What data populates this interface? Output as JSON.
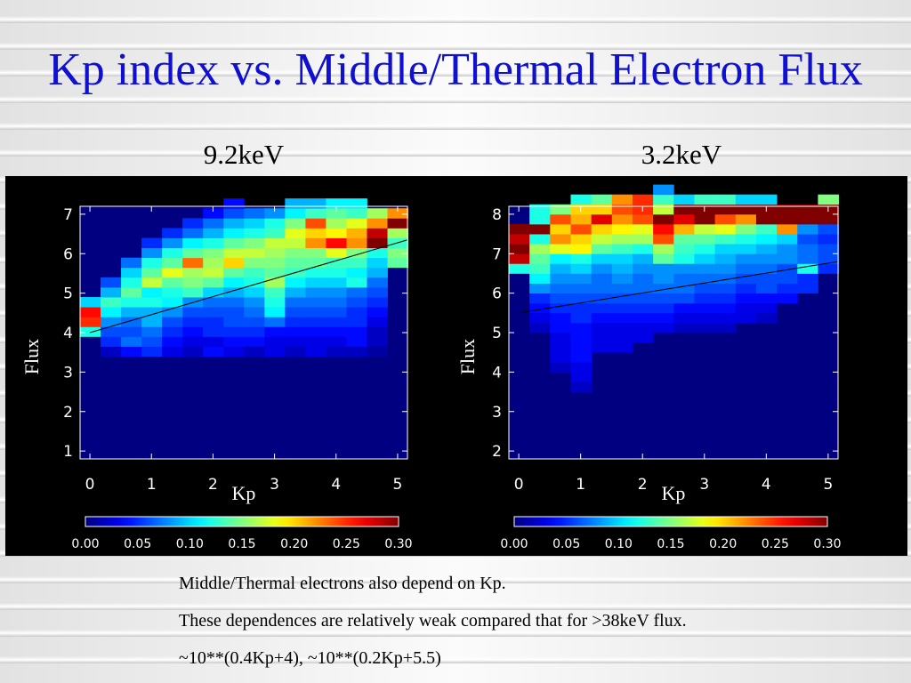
{
  "title": "Kp index vs. Middle/Thermal Electron Flux",
  "panels": {
    "left_caption": "9.2keV",
    "right_caption": "3.2keV"
  },
  "captions": [
    "Middle/Thermal electrons also depend on Kp.",
    "These dependences are relatively weak compared that for >38keV flux.",
    "~10**(0.4Kp+4), ~10**(0.2Kp+5.5)"
  ],
  "colors": {
    "title": "#1010d0",
    "plot_background": "#000080",
    "figure_background": "#000000",
    "fit_line": "#000000"
  },
  "chart_data": [
    {
      "type": "heatmap",
      "title": "9.2keV",
      "xlabel": "Kp",
      "ylabel": "Flux",
      "xlim": [
        -0.16,
        5.16
      ],
      "ylim": [
        0.8,
        7.2
      ],
      "x_ticks": [
        "0",
        "1",
        "2",
        "3",
        "4",
        "5"
      ],
      "y_ticks": [
        "1",
        "2",
        "3",
        "4",
        "5",
        "6",
        "7"
      ],
      "colorbar": {
        "range": [
          0.0,
          0.3
        ],
        "ticks": [
          "0.00",
          "0.05",
          "0.10",
          "0.15",
          "0.20",
          "0.25",
          "0.30"
        ],
        "colormap": "jet"
      },
      "bin_x_start": -0.16,
      "bin_x_width": 0.333,
      "bin_y_start": 3.4,
      "bin_y_width": 0.25,
      "cells": [
        [
          0.0,
          0.02,
          0.04,
          0.05,
          0.03,
          0.02,
          0.04,
          0.03,
          0.02,
          0.03,
          0.02,
          0.03,
          0.02,
          0.02,
          0.01,
          0.0
        ],
        [
          0.0,
          0.05,
          0.07,
          0.06,
          0.04,
          0.03,
          0.03,
          0.04,
          0.04,
          0.03,
          0.03,
          0.03,
          0.03,
          0.04,
          0.02,
          0.0
        ],
        [
          0.12,
          0.06,
          0.06,
          0.07,
          0.05,
          0.04,
          0.05,
          0.05,
          0.05,
          0.04,
          0.04,
          0.04,
          0.04,
          0.04,
          0.02,
          0.0
        ],
        [
          0.25,
          0.08,
          0.07,
          0.09,
          0.06,
          0.05,
          0.05,
          0.06,
          0.06,
          0.07,
          0.05,
          0.05,
          0.05,
          0.05,
          0.03,
          0.0
        ],
        [
          0.26,
          0.11,
          0.09,
          0.09,
          0.08,
          0.06,
          0.06,
          0.06,
          0.07,
          0.11,
          0.06,
          0.06,
          0.06,
          0.05,
          0.04,
          0.0
        ],
        [
          0.1,
          0.13,
          0.12,
          0.12,
          0.11,
          0.08,
          0.07,
          0.07,
          0.08,
          0.12,
          0.07,
          0.07,
          0.07,
          0.06,
          0.05,
          0.0
        ],
        [
          0.0,
          0.09,
          0.14,
          0.11,
          0.12,
          0.13,
          0.1,
          0.09,
          0.1,
          0.13,
          0.09,
          0.08,
          0.08,
          0.07,
          0.06,
          0.0
        ],
        [
          0.0,
          0.06,
          0.12,
          0.17,
          0.14,
          0.15,
          0.14,
          0.11,
          0.12,
          0.16,
          0.11,
          0.1,
          0.1,
          0.12,
          0.07,
          0.0
        ],
        [
          0.0,
          0.0,
          0.1,
          0.14,
          0.18,
          0.16,
          0.17,
          0.14,
          0.13,
          0.14,
          0.13,
          0.12,
          0.12,
          0.11,
          0.09,
          0.0
        ],
        [
          0.0,
          0.0,
          0.07,
          0.12,
          0.14,
          0.23,
          0.16,
          0.2,
          0.15,
          0.15,
          0.14,
          0.14,
          0.13,
          0.13,
          0.1,
          0.14
        ],
        [
          0.0,
          0.0,
          0.0,
          0.08,
          0.12,
          0.14,
          0.15,
          0.17,
          0.17,
          0.16,
          0.15,
          0.15,
          0.18,
          0.15,
          0.12,
          0.15
        ],
        [
          0.0,
          0.0,
          0.0,
          0.05,
          0.08,
          0.11,
          0.12,
          0.14,
          0.15,
          0.17,
          0.17,
          0.22,
          0.26,
          0.22,
          0.3,
          0.13
        ],
        [
          0.0,
          0.0,
          0.0,
          0.0,
          0.05,
          0.07,
          0.09,
          0.11,
          0.12,
          0.13,
          0.18,
          0.2,
          0.19,
          0.21,
          0.28,
          0.16
        ],
        [
          0.0,
          0.0,
          0.0,
          0.0,
          0.0,
          0.05,
          0.07,
          0.09,
          0.1,
          0.12,
          0.15,
          0.24,
          0.16,
          0.18,
          0.22,
          0.3
        ],
        [
          0.0,
          0.0,
          0.0,
          0.0,
          0.0,
          0.0,
          0.04,
          0.06,
          0.07,
          0.08,
          0.11,
          0.13,
          0.14,
          0.13,
          0.16,
          0.22
        ],
        [
          0.0,
          0.0,
          0.0,
          0.0,
          0.0,
          0.0,
          0.0,
          0.04,
          0.0,
          0.0,
          0.09,
          0.09,
          0.11,
          0.11,
          0.0,
          0.0
        ]
      ],
      "fit_line": {
        "x": [
          0.0,
          5.16
        ],
        "y": [
          4.0,
          6.35
        ]
      }
    },
    {
      "type": "heatmap",
      "title": "3.2keV",
      "xlabel": "Kp",
      "ylabel": "Flux",
      "xlim": [
        -0.16,
        5.16
      ],
      "ylim": [
        1.8,
        8.2
      ],
      "x_ticks": [
        "0",
        "1",
        "2",
        "3",
        "4",
        "5"
      ],
      "y_ticks": [
        "2",
        "3",
        "4",
        "5",
        "6",
        "7",
        "8"
      ],
      "colorbar": {
        "range": [
          0.0,
          0.3
        ],
        "ticks": [
          "0.00",
          "0.05",
          "0.10",
          "0.15",
          "0.20",
          "0.25",
          "0.30"
        ],
        "colormap": "jet"
      },
      "bin_x_start": -0.16,
      "bin_x_width": 0.333,
      "bin_y_start": 3.5,
      "bin_y_width": 0.25,
      "cells": [
        [
          0.0,
          0.0,
          0.0,
          0.02,
          0.0,
          0.0,
          0.0,
          0.0,
          0.0,
          0.0,
          0.0,
          0.0,
          0.0,
          0.0,
          0.0,
          0.0
        ],
        [
          0.0,
          0.0,
          0.0,
          0.03,
          0.0,
          0.0,
          0.0,
          0.0,
          0.0,
          0.0,
          0.0,
          0.0,
          0.0,
          0.0,
          0.0,
          0.0
        ],
        [
          0.0,
          0.0,
          0.02,
          0.03,
          0.0,
          0.0,
          0.0,
          0.0,
          0.0,
          0.0,
          0.0,
          0.0,
          0.0,
          0.0,
          0.0,
          0.0
        ],
        [
          0.0,
          0.0,
          0.03,
          0.04,
          0.0,
          0.0,
          0.0,
          0.0,
          0.0,
          0.0,
          0.0,
          0.0,
          0.0,
          0.0,
          0.0,
          0.0
        ],
        [
          0.0,
          0.0,
          0.03,
          0.04,
          0.03,
          0.03,
          0.0,
          0.0,
          0.0,
          0.0,
          0.0,
          0.0,
          0.0,
          0.0,
          0.0,
          0.0
        ],
        [
          0.0,
          0.0,
          0.03,
          0.04,
          0.03,
          0.03,
          0.03,
          0.0,
          0.0,
          0.0,
          0.0,
          0.0,
          0.0,
          0.0,
          0.0,
          0.0
        ],
        [
          0.0,
          0.02,
          0.04,
          0.04,
          0.03,
          0.03,
          0.03,
          0.03,
          0.02,
          0.02,
          0.02,
          0.0,
          0.0,
          0.0,
          0.0,
          0.0
        ],
        [
          0.0,
          0.03,
          0.04,
          0.05,
          0.04,
          0.04,
          0.04,
          0.04,
          0.03,
          0.03,
          0.03,
          0.03,
          0.02,
          0.0,
          0.0,
          0.0
        ],
        [
          0.0,
          0.04,
          0.05,
          0.05,
          0.05,
          0.05,
          0.05,
          0.05,
          0.04,
          0.04,
          0.04,
          0.03,
          0.03,
          0.0,
          0.0,
          0.0
        ],
        [
          0.0,
          0.05,
          0.06,
          0.06,
          0.06,
          0.06,
          0.06,
          0.06,
          0.06,
          0.05,
          0.05,
          0.04,
          0.04,
          0.04,
          0.0,
          0.0
        ],
        [
          0.0,
          0.08,
          0.07,
          0.07,
          0.07,
          0.07,
          0.07,
          0.07,
          0.07,
          0.06,
          0.06,
          0.05,
          0.06,
          0.05,
          0.05,
          0.0
        ],
        [
          0.0,
          0.11,
          0.08,
          0.08,
          0.07,
          0.08,
          0.07,
          0.08,
          0.07,
          0.07,
          0.07,
          0.06,
          0.06,
          0.06,
          0.05,
          0.0
        ],
        [
          0.12,
          0.13,
          0.09,
          0.1,
          0.08,
          0.09,
          0.08,
          0.08,
          0.08,
          0.08,
          0.08,
          0.07,
          0.07,
          0.06,
          0.12,
          0.05
        ],
        [
          0.28,
          0.14,
          0.11,
          0.12,
          0.1,
          0.1,
          0.09,
          0.14,
          0.12,
          0.1,
          0.09,
          0.08,
          0.08,
          0.08,
          0.07,
          0.06
        ],
        [
          0.3,
          0.16,
          0.18,
          0.19,
          0.14,
          0.13,
          0.12,
          0.16,
          0.13,
          0.12,
          0.1,
          0.1,
          0.09,
          0.08,
          0.07,
          0.06
        ],
        [
          0.28,
          0.12,
          0.22,
          0.2,
          0.17,
          0.16,
          0.16,
          0.24,
          0.14,
          0.14,
          0.13,
          0.12,
          0.11,
          0.1,
          0.06,
          0.05
        ],
        [
          0.3,
          0.3,
          0.2,
          0.24,
          0.2,
          0.19,
          0.18,
          0.26,
          0.21,
          0.17,
          0.18,
          0.15,
          0.13,
          0.22,
          0.08,
          0.06
        ],
        [
          0.0,
          0.12,
          0.24,
          0.21,
          0.27,
          0.22,
          0.24,
          0.3,
          0.27,
          0.3,
          0.24,
          0.22,
          0.3,
          0.3,
          0.3,
          0.3
        ],
        [
          0.0,
          0.12,
          0.15,
          0.2,
          0.2,
          0.24,
          0.25,
          0.17,
          0.3,
          0.3,
          0.3,
          0.3,
          0.3,
          0.3,
          0.3,
          0.3
        ],
        [
          0.0,
          0.0,
          0.0,
          0.12,
          0.14,
          0.22,
          0.25,
          0.13,
          0.1,
          0.13,
          0.13,
          0.1,
          0.1,
          0.0,
          0.0,
          0.15
        ],
        [
          0.0,
          0.0,
          0.0,
          0.0,
          0.0,
          0.0,
          0.0,
          0.08,
          0.0,
          0.0,
          0.0,
          0.0,
          0.0,
          0.0,
          0.0,
          0.0
        ]
      ],
      "fit_line": {
        "x": [
          0.0,
          5.16
        ],
        "y": [
          5.5,
          6.8
        ]
      }
    }
  ]
}
